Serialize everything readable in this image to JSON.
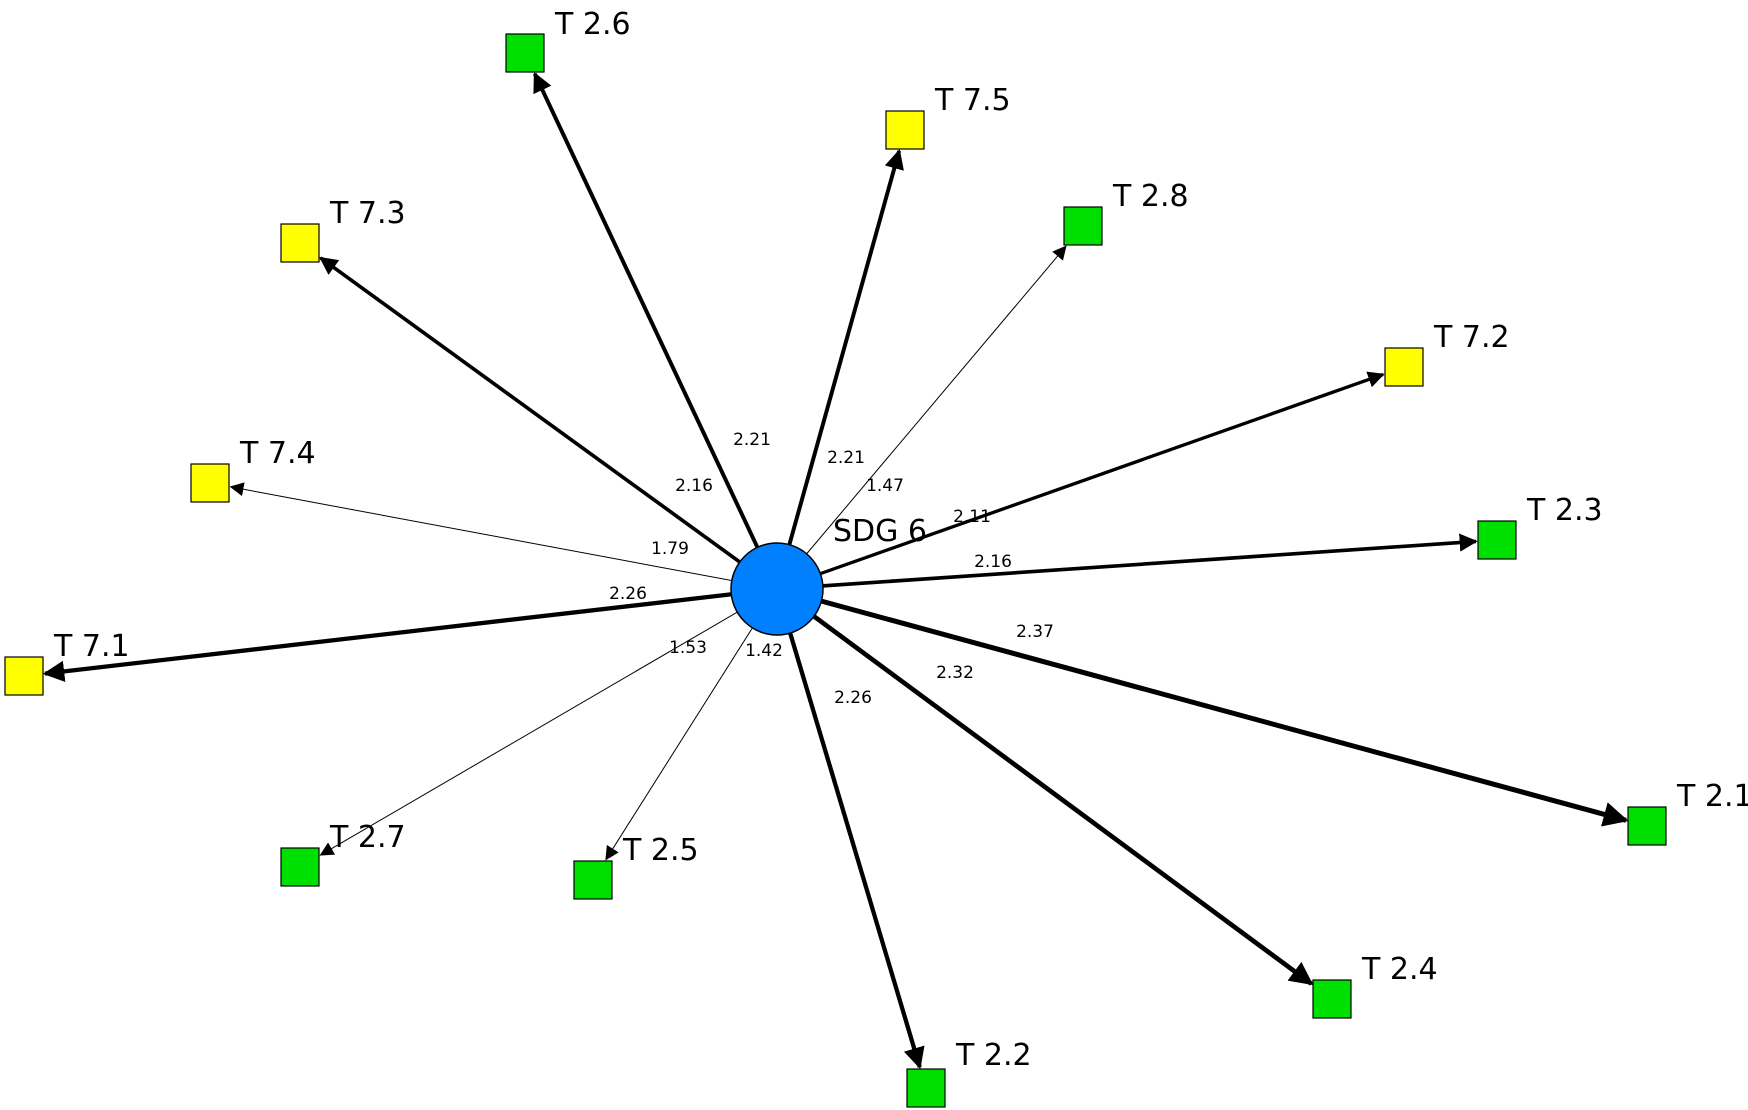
{
  "diagram": {
    "center": {
      "id": "sdg6",
      "label": "SDG 6",
      "color": "#0080ff"
    },
    "node_colors": {
      "green": "#00e000",
      "yellow": "#ffff00",
      "edge": "#000000"
    },
    "nodes": [
      {
        "id": "t26",
        "label": "T 2.6",
        "color": "green"
      },
      {
        "id": "t75",
        "label": "T 7.5",
        "color": "yellow"
      },
      {
        "id": "t28",
        "label": "T 2.8",
        "color": "green"
      },
      {
        "id": "t72",
        "label": "T 7.2",
        "color": "yellow"
      },
      {
        "id": "t23",
        "label": "T 2.3",
        "color": "green"
      },
      {
        "id": "t21",
        "label": "T 2.1",
        "color": "green"
      },
      {
        "id": "t24",
        "label": "T 2.4",
        "color": "green"
      },
      {
        "id": "t22",
        "label": "T 2.2",
        "color": "green"
      },
      {
        "id": "t25",
        "label": "T 2.5",
        "color": "green"
      },
      {
        "id": "t27",
        "label": "T 2.7",
        "color": "green"
      },
      {
        "id": "t71",
        "label": "T 7.1",
        "color": "yellow"
      },
      {
        "id": "t74",
        "label": "T 7.4",
        "color": "yellow"
      },
      {
        "id": "t73",
        "label": "T 7.3",
        "color": "yellow"
      }
    ],
    "edges": [
      {
        "from": "sdg6",
        "to": "t26",
        "weight": "2.21"
      },
      {
        "from": "sdg6",
        "to": "t75",
        "weight": "2.21"
      },
      {
        "from": "sdg6",
        "to": "t28",
        "weight": "1.47"
      },
      {
        "from": "sdg6",
        "to": "t72",
        "weight": "2.11"
      },
      {
        "from": "sdg6",
        "to": "t23",
        "weight": "2.16"
      },
      {
        "from": "sdg6",
        "to": "t21",
        "weight": "2.37"
      },
      {
        "from": "sdg6",
        "to": "t24",
        "weight": "2.32"
      },
      {
        "from": "sdg6",
        "to": "t22",
        "weight": "2.26"
      },
      {
        "from": "sdg6",
        "to": "t25",
        "weight": "1.42"
      },
      {
        "from": "sdg6",
        "to": "t27",
        "weight": "1.53"
      },
      {
        "from": "sdg6",
        "to": "t71",
        "weight": "2.26"
      },
      {
        "from": "sdg6",
        "to": "t74",
        "weight": "1.79"
      },
      {
        "from": "sdg6",
        "to": "t73",
        "weight": "2.16"
      }
    ]
  }
}
